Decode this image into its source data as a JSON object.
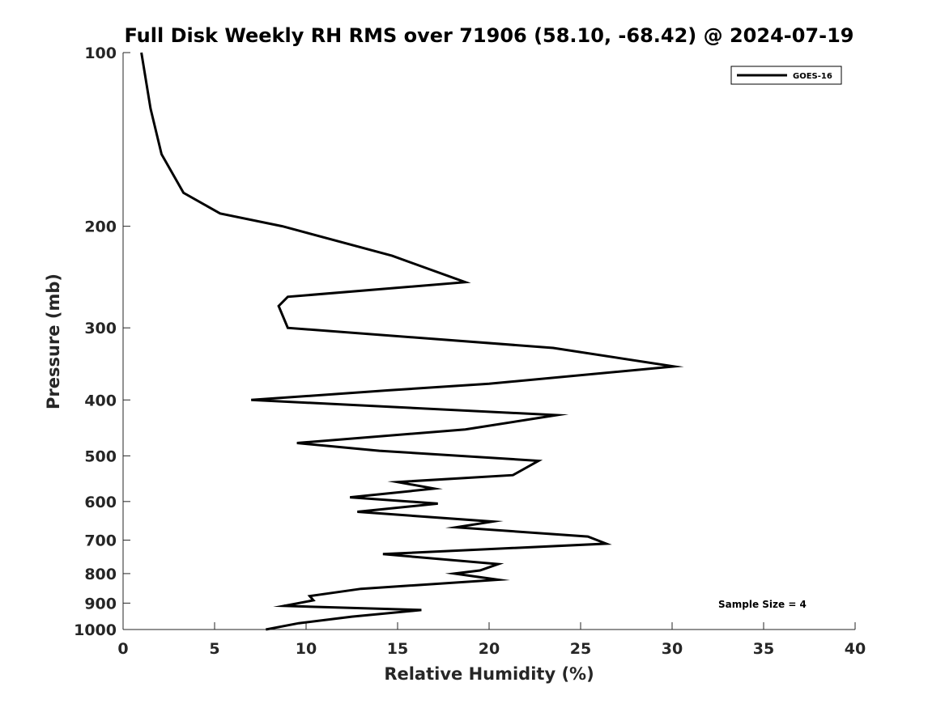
{
  "chart_data": {
    "type": "line",
    "title": "Full Disk Weekly RH RMS over 71906 (58.10, -68.42) @ 2024-07-19",
    "xlabel": "Relative Humidity (%)",
    "ylabel": "Pressure (mb)",
    "xlim": [
      0,
      40
    ],
    "ylim": [
      1000,
      100
    ],
    "y_scale": "log",
    "y_reversed": true,
    "grid": false,
    "x_ticks": [
      "0",
      "5",
      "10",
      "15",
      "20",
      "25",
      "30",
      "35",
      "40"
    ],
    "y_ticks": [
      "100",
      "200",
      "300",
      "400",
      "500",
      "600",
      "700",
      "800",
      "900",
      "1000"
    ],
    "legend": {
      "position": "top-right",
      "entries": [
        "GOES-16"
      ]
    },
    "annotation": "Sample Size = 4",
    "series": [
      {
        "name": "GOES-16",
        "color": "#000000",
        "points": [
          [
            1.0,
            100
          ],
          [
            1.5,
            125
          ],
          [
            2.1,
            150
          ],
          [
            3.3,
            175
          ],
          [
            5.3,
            190
          ],
          [
            8.7,
            200
          ],
          [
            14.7,
            225
          ],
          [
            18.7,
            250
          ],
          [
            9.0,
            265
          ],
          [
            8.5,
            275
          ],
          [
            9.0,
            300
          ],
          [
            23.5,
            325
          ],
          [
            30.1,
            350
          ],
          [
            20.0,
            375
          ],
          [
            14.5,
            385
          ],
          [
            7.0,
            400
          ],
          [
            23.7,
            425
          ],
          [
            18.7,
            450
          ],
          [
            9.5,
            475
          ],
          [
            14.0,
            490
          ],
          [
            22.7,
            510
          ],
          [
            21.3,
            540
          ],
          [
            15.0,
            555
          ],
          [
            17.0,
            570
          ],
          [
            12.4,
            590
          ],
          [
            17.2,
            605
          ],
          [
            12.8,
            625
          ],
          [
            20.2,
            650
          ],
          [
            18.2,
            665
          ],
          [
            25.4,
            690
          ],
          [
            26.4,
            710
          ],
          [
            14.2,
            740
          ],
          [
            20.5,
            770
          ],
          [
            19.5,
            790
          ],
          [
            18.1,
            800
          ],
          [
            20.5,
            820
          ],
          [
            13.0,
            850
          ],
          [
            10.2,
            875
          ],
          [
            10.4,
            890
          ],
          [
            8.8,
            910
          ],
          [
            16.3,
            925
          ],
          [
            12.5,
            950
          ],
          [
            9.6,
            975
          ],
          [
            7.8,
            1000
          ]
        ]
      }
    ]
  }
}
